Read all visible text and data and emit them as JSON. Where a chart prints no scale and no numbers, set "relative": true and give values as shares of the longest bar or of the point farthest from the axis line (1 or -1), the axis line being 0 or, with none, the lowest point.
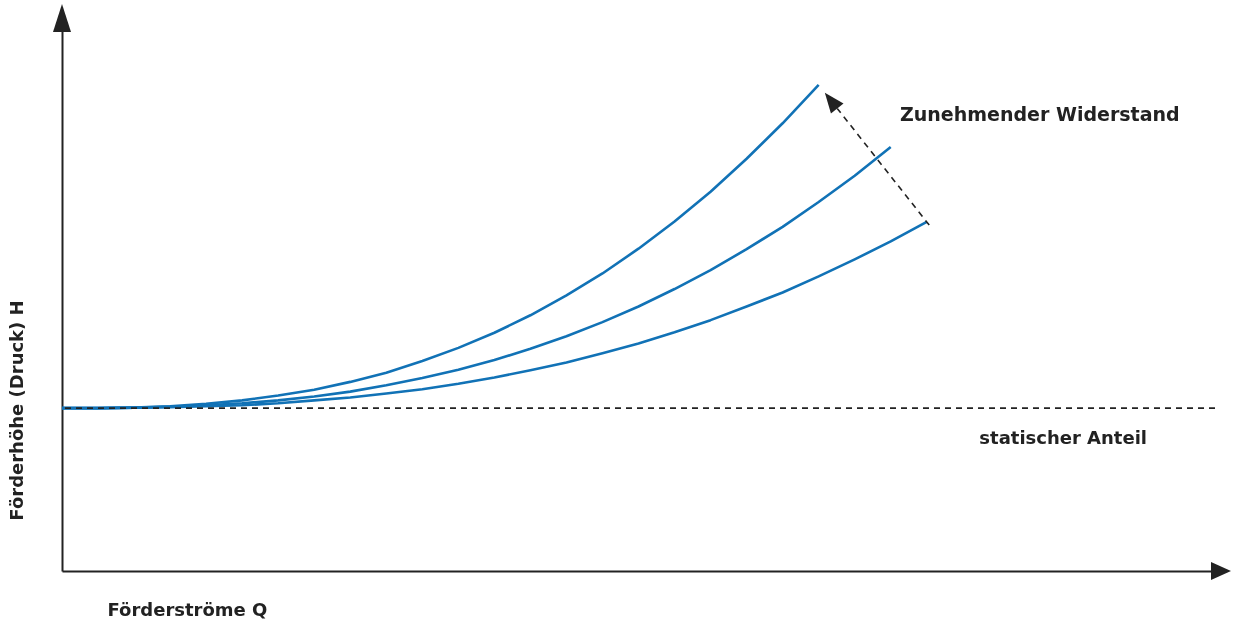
{
  "chart_data": {
    "type": "line",
    "relative": true,
    "xlabel": "Förderströme Q",
    "ylabel": "Förderhöhe (Druck) H",
    "marker": "none",
    "line_style": "solid",
    "categories": [
      null,
      null,
      null,
      null,
      null,
      null,
      null,
      null,
      null,
      null,
      null,
      null,
      null,
      null,
      null,
      null,
      null,
      null,
      null,
      null,
      null,
      null,
      null,
      null,
      null,
      null,
      null,
      null,
      null,
      null,
      null,
      null,
      null
    ],
    "series": [
      {
        "color": "#1172b6",
        "values": [
          0.335,
          0.335,
          0.336,
          0.339,
          0.344,
          0.351,
          0.361,
          0.373,
          0.389,
          0.408,
          0.432,
          0.459,
          0.49,
          0.526,
          0.567,
          0.612,
          0.663,
          0.719,
          0.78,
          0.848,
          0.921,
          1,
          null,
          null,
          null,
          null,
          null,
          null,
          null,
          null,
          null,
          null,
          null
        ]
      },
      {
        "color": "#1172b6",
        "values": [
          0.335,
          0.335,
          0.336,
          0.338,
          0.341,
          0.345,
          0.351,
          0.359,
          0.369,
          0.382,
          0.397,
          0.414,
          0.434,
          0.457,
          0.483,
          0.512,
          0.544,
          0.58,
          0.619,
          0.662,
          0.708,
          0.759,
          0.813,
          0.872,
          null,
          null,
          null,
          null,
          null,
          null,
          null,
          null,
          null
        ]
      },
      {
        "color": "#1172b6",
        "values": [
          0.335,
          0.335,
          0.336,
          0.337,
          0.339,
          0.341,
          0.345,
          0.351,
          0.357,
          0.365,
          0.374,
          0.385,
          0.398,
          0.413,
          0.429,
          0.448,
          0.468,
          0.491,
          0.516,
          0.544,
          0.573,
          0.606,
          0.641,
          0.678,
          0.718,
          null,
          null,
          null,
          null,
          null,
          null,
          null,
          null
        ]
      }
    ],
    "ref_lines": [
      {
        "axis": "y",
        "value": 0.335,
        "label": "statischer Anteil",
        "color": "#222222",
        "line_style": "dashed"
      }
    ],
    "annotations": [
      "Zunehmender Widerstand"
    ]
  }
}
